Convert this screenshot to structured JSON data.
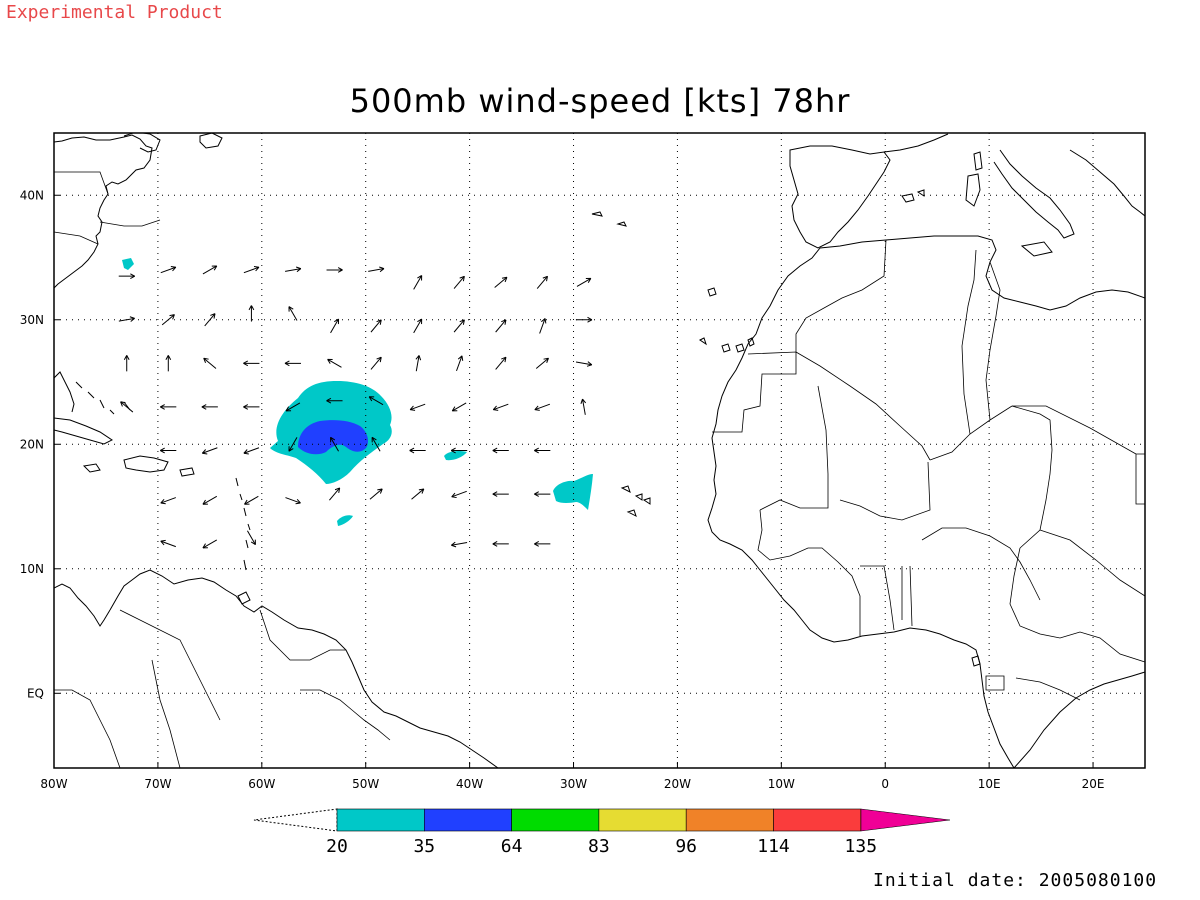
{
  "header": {
    "experimental_label": "Experimental Product",
    "title": "500mb wind-speed [kts] 78hr"
  },
  "footer": {
    "initial_date": "Initial date: 2005080100"
  },
  "map": {
    "projection": "lat-lon",
    "lon_range": [
      -80,
      25
    ],
    "lat_range": [
      -6,
      45
    ],
    "grid": "dotted",
    "lon_ticks": [
      {
        "value": -80,
        "label": "80W"
      },
      {
        "value": -70,
        "label": "70W"
      },
      {
        "value": -60,
        "label": "60W"
      },
      {
        "value": -50,
        "label": "50W"
      },
      {
        "value": -40,
        "label": "40W"
      },
      {
        "value": -30,
        "label": "30W"
      },
      {
        "value": -20,
        "label": "20W"
      },
      {
        "value": -10,
        "label": "10W"
      },
      {
        "value": 0,
        "label": "0"
      },
      {
        "value": 10,
        "label": "10E"
      },
      {
        "value": 20,
        "label": "20E"
      }
    ],
    "lat_ticks": [
      {
        "value": 40,
        "label": "40N"
      },
      {
        "value": 30,
        "label": "30N"
      },
      {
        "value": 20,
        "label": "20N"
      },
      {
        "value": 10,
        "label": "10N"
      },
      {
        "value": 0,
        "label": "EQ"
      }
    ]
  },
  "colorbar": {
    "levels": [
      "20",
      "35",
      "64",
      "83",
      "96",
      "114",
      "135"
    ],
    "colors": [
      "#00c8c8",
      "#2040ff",
      "#00dc00",
      "#e6dc32",
      "#f08228",
      "#fa3c3c",
      "#f00096"
    ]
  },
  "wind_field": {
    "shaded_regions": [
      {
        "level": "20-35",
        "color": "#00c8c8",
        "center_lon": -51,
        "center_lat": 21.5
      },
      {
        "level": "35-64",
        "color": "#2040ff",
        "center_lon": -51,
        "center_lat": 20.8
      },
      {
        "level": "20-35",
        "color": "#00c8c8",
        "center_lon": -29,
        "center_lat": 16.8
      }
    ],
    "vectors": [
      {
        "lon": -73,
        "lat": 33.5,
        "dir": 180
      },
      {
        "lon": -69,
        "lat": 34,
        "dir": 200
      },
      {
        "lon": -65,
        "lat": 34,
        "dir": 210
      },
      {
        "lon": -61,
        "lat": 34,
        "dir": 200
      },
      {
        "lon": -57,
        "lat": 34,
        "dir": 190
      },
      {
        "lon": -53,
        "lat": 34,
        "dir": 180
      },
      {
        "lon": -49,
        "lat": 34,
        "dir": 190
      },
      {
        "lon": -45,
        "lat": 33,
        "dir": 240
      },
      {
        "lon": -41,
        "lat": 33,
        "dir": 230
      },
      {
        "lon": -37,
        "lat": 33,
        "dir": 220
      },
      {
        "lon": -33,
        "lat": 33,
        "dir": 230
      },
      {
        "lon": -29,
        "lat": 33,
        "dir": 210
      },
      {
        "lon": -73,
        "lat": 30,
        "dir": 190
      },
      {
        "lon": -69,
        "lat": 30,
        "dir": 220
      },
      {
        "lon": -65,
        "lat": 30,
        "dir": 230
      },
      {
        "lon": -61,
        "lat": 30.5,
        "dir": 270
      },
      {
        "lon": -57,
        "lat": 30.5,
        "dir": 300
      },
      {
        "lon": -53,
        "lat": 29.5,
        "dir": 240
      },
      {
        "lon": -49,
        "lat": 29.5,
        "dir": 230
      },
      {
        "lon": -45,
        "lat": 29.5,
        "dir": 240
      },
      {
        "lon": -41,
        "lat": 29.5,
        "dir": 230
      },
      {
        "lon": -37,
        "lat": 29.5,
        "dir": 230
      },
      {
        "lon": -33,
        "lat": 29.5,
        "dir": 250
      },
      {
        "lon": -29,
        "lat": 30,
        "dir": 180
      },
      {
        "lon": -73,
        "lat": 26.5,
        "dir": 270
      },
      {
        "lon": -69,
        "lat": 26.5,
        "dir": 270
      },
      {
        "lon": -65,
        "lat": 26.5,
        "dir": 320
      },
      {
        "lon": -61,
        "lat": 26.5,
        "dir": 0
      },
      {
        "lon": -57,
        "lat": 26.5,
        "dir": 0
      },
      {
        "lon": -53,
        "lat": 26.5,
        "dir": 330
      },
      {
        "lon": -49,
        "lat": 26.5,
        "dir": 230
      },
      {
        "lon": -45,
        "lat": 26.5,
        "dir": 260
      },
      {
        "lon": -41,
        "lat": 26.5,
        "dir": 250
      },
      {
        "lon": -37,
        "lat": 26.5,
        "dir": 230
      },
      {
        "lon": -33,
        "lat": 26.5,
        "dir": 220
      },
      {
        "lon": -29,
        "lat": 26.5,
        "dir": 170
      },
      {
        "lon": -73,
        "lat": 23,
        "dir": 320
      },
      {
        "lon": -69,
        "lat": 23,
        "dir": 0
      },
      {
        "lon": -65,
        "lat": 23,
        "dir": 0
      },
      {
        "lon": -61,
        "lat": 23,
        "dir": 0
      },
      {
        "lon": -57,
        "lat": 23,
        "dir": 30
      },
      {
        "lon": -53,
        "lat": 23.5,
        "dir": 0
      },
      {
        "lon": -49,
        "lat": 23.5,
        "dir": 330
      },
      {
        "lon": -45,
        "lat": 23,
        "dir": 20
      },
      {
        "lon": -41,
        "lat": 23,
        "dir": 30
      },
      {
        "lon": -37,
        "lat": 23,
        "dir": 20
      },
      {
        "lon": -33,
        "lat": 23,
        "dir": 20
      },
      {
        "lon": -29,
        "lat": 23,
        "dir": 280
      },
      {
        "lon": -69,
        "lat": 19.5,
        "dir": 0
      },
      {
        "lon": -65,
        "lat": 19.5,
        "dir": 20
      },
      {
        "lon": -61,
        "lat": 19.5,
        "dir": 20
      },
      {
        "lon": -57,
        "lat": 20,
        "dir": 60
      },
      {
        "lon": -53,
        "lat": 20,
        "dir": 300
      },
      {
        "lon": -49,
        "lat": 20,
        "dir": 300
      },
      {
        "lon": -45,
        "lat": 19.5,
        "dir": 0
      },
      {
        "lon": -41,
        "lat": 19.5,
        "dir": 0
      },
      {
        "lon": -37,
        "lat": 19.5,
        "dir": 0
      },
      {
        "lon": -33,
        "lat": 19.5,
        "dir": 0
      },
      {
        "lon": -69,
        "lat": 15.5,
        "dir": 20
      },
      {
        "lon": -65,
        "lat": 15.5,
        "dir": 30
      },
      {
        "lon": -61,
        "lat": 15.5,
        "dir": 30
      },
      {
        "lon": -57,
        "lat": 15.5,
        "dir": 160
      },
      {
        "lon": -53,
        "lat": 16,
        "dir": 230
      },
      {
        "lon": -49,
        "lat": 16,
        "dir": 220
      },
      {
        "lon": -45,
        "lat": 16,
        "dir": 220
      },
      {
        "lon": -41,
        "lat": 16,
        "dir": 20
      },
      {
        "lon": -37,
        "lat": 16,
        "dir": 0
      },
      {
        "lon": -33,
        "lat": 16,
        "dir": 0
      },
      {
        "lon": -69,
        "lat": 12,
        "dir": 340
      },
      {
        "lon": -65,
        "lat": 12,
        "dir": 30
      },
      {
        "lon": -61,
        "lat": 12.5,
        "dir": 120
      },
      {
        "lon": -41,
        "lat": 12,
        "dir": 10
      },
      {
        "lon": -37,
        "lat": 12,
        "dir": 0
      },
      {
        "lon": -33,
        "lat": 12,
        "dir": 0
      }
    ]
  }
}
